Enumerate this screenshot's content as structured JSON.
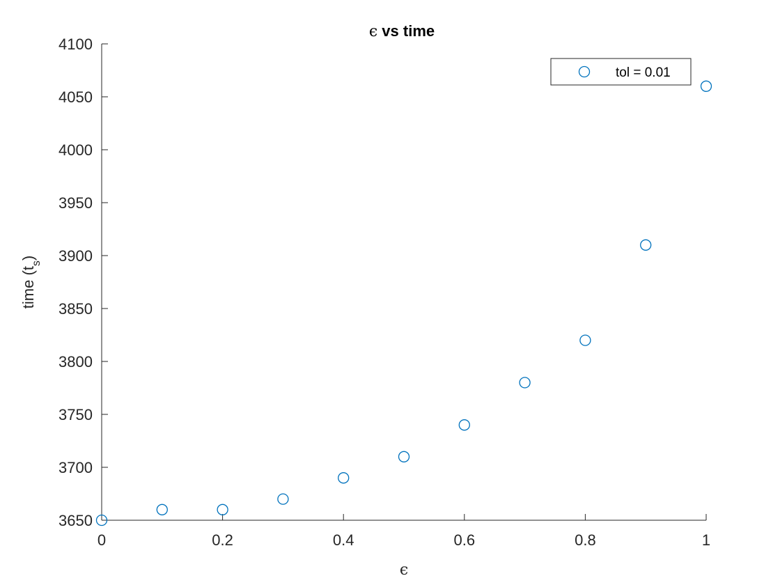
{
  "chart_data": {
    "type": "scatter",
    "title_symbol": "ϵ",
    "title_text": " vs time",
    "xlabel": "ϵ",
    "ylabel_main": "time (t",
    "ylabel_sub": "s",
    "ylabel_close": ")",
    "xlim": [
      0,
      1
    ],
    "ylim": [
      3650,
      4100
    ],
    "xticks": [
      0,
      0.2,
      0.4,
      0.6,
      0.8,
      1
    ],
    "xtick_labels": [
      "0",
      "0.2",
      "0.4",
      "0.6",
      "0.8",
      "1"
    ],
    "yticks": [
      3650,
      3700,
      3750,
      3800,
      3850,
      3900,
      3950,
      4000,
      4050,
      4100
    ],
    "ytick_labels": [
      "3650",
      "3700",
      "3750",
      "3800",
      "3850",
      "3900",
      "3950",
      "4000",
      "4050",
      "4100"
    ],
    "grid": false,
    "legend_position": "top-right",
    "marker_color": "#0072BD",
    "series": [
      {
        "name": "tol = 0.01",
        "x": [
          0,
          0.1,
          0.2,
          0.3,
          0.4,
          0.5,
          0.6,
          0.7,
          0.8,
          0.9,
          1.0
        ],
        "y": [
          3650,
          3660,
          3660,
          3670,
          3690,
          3710,
          3740,
          3780,
          3820,
          3910,
          4060
        ]
      }
    ]
  }
}
